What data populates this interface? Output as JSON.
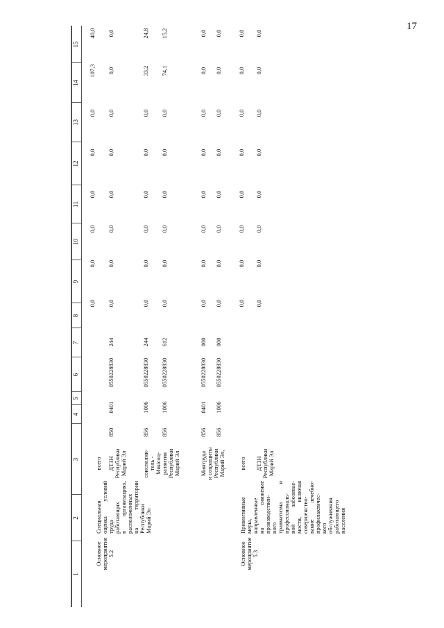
{
  "page_number": "17",
  "header": [
    "1",
    "2",
    "3",
    "4",
    "5",
    "6",
    "7",
    "8",
    "9",
    "10",
    "11",
    "12",
    "13",
    "14",
    "15"
  ],
  "sections": [
    {
      "name_lines": [
        "Основное",
        "мероприятие",
        "5.2"
      ],
      "description_lines": [
        "Специальная",
        "оценка условий",
        "труда",
        "работающих",
        "в организациях,",
        "расположенных",
        "на территории",
        "Республики",
        "Марий Эл"
      ],
      "total": {
        "label": "всего",
        "values": [
          "0,0",
          "0,0",
          "0,0",
          "0,0",
          "0,0",
          "0,0",
          "107,3",
          "40,0"
        ]
      },
      "executors": [
        {
          "name_lines": [
            "ДТЗН",
            "Республики",
            "Марий Эл"
          ],
          "rows": [
            {
              "grbs": "850",
              "rz_pr": "0401",
              "csr": "0550228830",
              "vr": "244",
              "values": [
                "0,0",
                "0,0",
                "0,0",
                "0,0",
                "0,0",
                "0,0",
                "0,0",
                "0,0"
              ]
            }
          ]
        },
        {
          "name_lines": [
            "соисполни-",
            "тель -",
            "Минсоц-",
            "развития",
            "Республики",
            "Марий Эл"
          ],
          "rows": [
            {
              "grbs": "856",
              "rz_pr": "1006",
              "csr": "0550228830",
              "vr": "244",
              "values": [
                "0,0",
                "0,0",
                "0,0",
                "0,0",
                "0,0",
                "0,0",
                "33,2",
                "24,8"
              ]
            },
            {
              "grbs": "856",
              "rz_pr": "1006",
              "csr": "0550228830",
              "vr": "612",
              "values": [
                "0,0",
                "0,0",
                "0,0",
                "0,0",
                "0,0",
                "0,0",
                "74,1",
                "15,2"
              ]
            }
          ]
        },
        {
          "name_lines": [
            "Минтруда",
            "и соцзащиты",
            "Республики",
            "Марий Эл,"
          ],
          "rows": [
            {
              "grbs": "856",
              "rz_pr": "0401",
              "csr": "0550228830",
              "vr": "000",
              "values": [
                "0,0",
                "0,0",
                "0,0",
                "0,0",
                "0,0",
                "0,0",
                "0,0",
                "0,0"
              ]
            },
            {
              "grbs": "856",
              "rz_pr": "1006",
              "csr": "0550228830",
              "vr": "000",
              "values": [
                "0,0",
                "0,0",
                "0,0",
                "0,0",
                "0,0",
                "0,0",
                "0,0",
                "0,0"
              ]
            }
          ]
        }
      ]
    },
    {
      "name_lines": [
        "Основное",
        "мероприятие",
        "5.3"
      ],
      "description_lines": [
        "Превентивные",
        "меры,",
        "направленные",
        "на снижение",
        "производствен-",
        "ного",
        "травматизма и",
        "профессиональ-",
        "ной заболевае-",
        "мости, включая",
        "совершенство-",
        "вание лечебно-",
        "профилактичес-",
        "кого",
        "обслуживания",
        "работающего",
        "населения"
      ],
      "total": {
        "label": "всего",
        "values": [
          "0,0",
          "0,0",
          "0,0",
          "0,0",
          "0,0",
          "0,0",
          "0,0",
          "0,0"
        ]
      },
      "executors": [
        {
          "name_lines": [
            "ДТЗН",
            "Республики",
            "Марий Эл"
          ],
          "rows": [
            {
              "grbs": "",
              "rz_pr": "",
              "csr": "",
              "vr": "",
              "values": [
                "0,0",
                "0,0",
                "0,0",
                "0,0",
                "0,0",
                "0,0",
                "0,0",
                "0,0"
              ]
            }
          ]
        }
      ]
    }
  ]
}
